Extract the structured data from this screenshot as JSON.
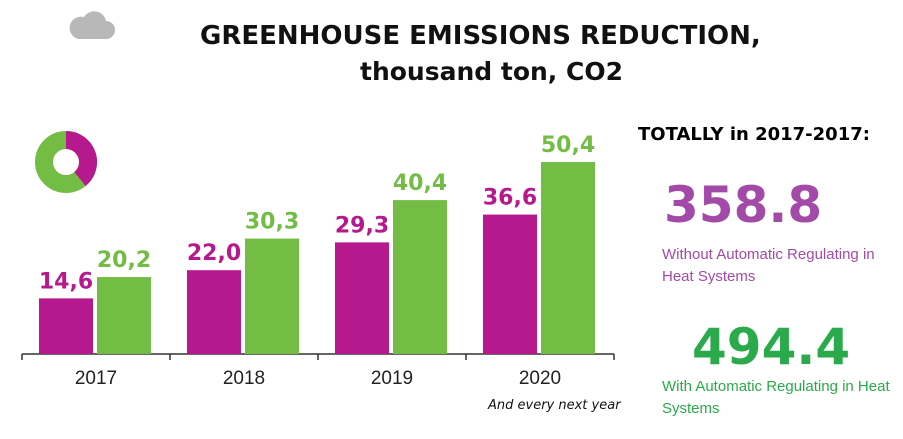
{
  "title": {
    "line1": "GREENHOUSE EMISSIONS REDUCTION,",
    "line2": "thousand ton, CO2"
  },
  "totals": {
    "heading": "TOTALLY in 2017-2017:",
    "without_value": "358.8",
    "without_label": "Without Automatic Regulating in Heat Systems",
    "with_value": "494.4",
    "with_label": "With Automatic Regulating in Heat Systems"
  },
  "note": "And every next year",
  "icons": {
    "cloud": "cloud-icon",
    "donut": "donut-chart-icon"
  },
  "colors": {
    "magenta": "#b5198d",
    "green": "#74bd44",
    "total_purple": "#a34aa8",
    "total_green": "#2aaa4a"
  },
  "chart_data": {
    "type": "bar",
    "categories": [
      "2017",
      "2018",
      "2019",
      "2020"
    ],
    "series": [
      {
        "values": [
          14.6,
          22.0,
          29.3,
          36.6
        ],
        "labels": [
          "14,6",
          "22,0",
          "29,3",
          "36,6"
        ],
        "color": "#b5198d"
      },
      {
        "values": [
          20.2,
          30.3,
          40.4,
          50.4
        ],
        "labels": [
          "20,2",
          "30,3",
          "40,4",
          "50,4"
        ],
        "color": "#74bd44"
      }
    ],
    "ylim": [
      0,
      50.4
    ],
    "grid": false,
    "title": "GREENHOUSE EMISSIONS REDUCTION, thousand ton, CO2"
  }
}
